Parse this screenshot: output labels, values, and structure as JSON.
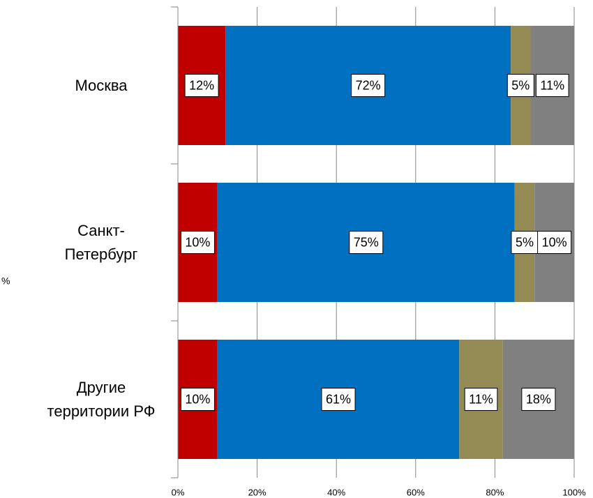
{
  "chart_data": {
    "type": "stacked-bar-horizontal",
    "categories": [
      "Москва",
      "Санкт-Петербург",
      "Другие территории РФ"
    ],
    "series": [
      {
        "color": "#c00000",
        "values": [
          12,
          10,
          10
        ],
        "value_labels": [
          "12%",
          "10%",
          "10%"
        ]
      },
      {
        "color": "#0070c0",
        "values": [
          72,
          75,
          61
        ],
        "value_labels": [
          "72%",
          "75%",
          "61%"
        ]
      },
      {
        "color": "#948a54",
        "values": [
          5,
          5,
          11
        ],
        "value_labels": [
          "5%",
          "5%",
          "11%"
        ]
      },
      {
        "color": "#808080",
        "values": [
          11,
          10,
          18
        ],
        "value_labels": [
          "11%",
          "10%",
          "18%"
        ]
      }
    ],
    "xlim": [
      0,
      100
    ],
    "xticks": [
      {
        "value": 0,
        "label": "0%"
      },
      {
        "value": 20,
        "label": "20%"
      },
      {
        "value": 40,
        "label": "40%"
      },
      {
        "value": 60,
        "label": "60%"
      },
      {
        "value": 80,
        "label": "80%"
      },
      {
        "value": 100,
        "label": "100%"
      }
    ],
    "grid": true,
    "annotation": "%"
  }
}
